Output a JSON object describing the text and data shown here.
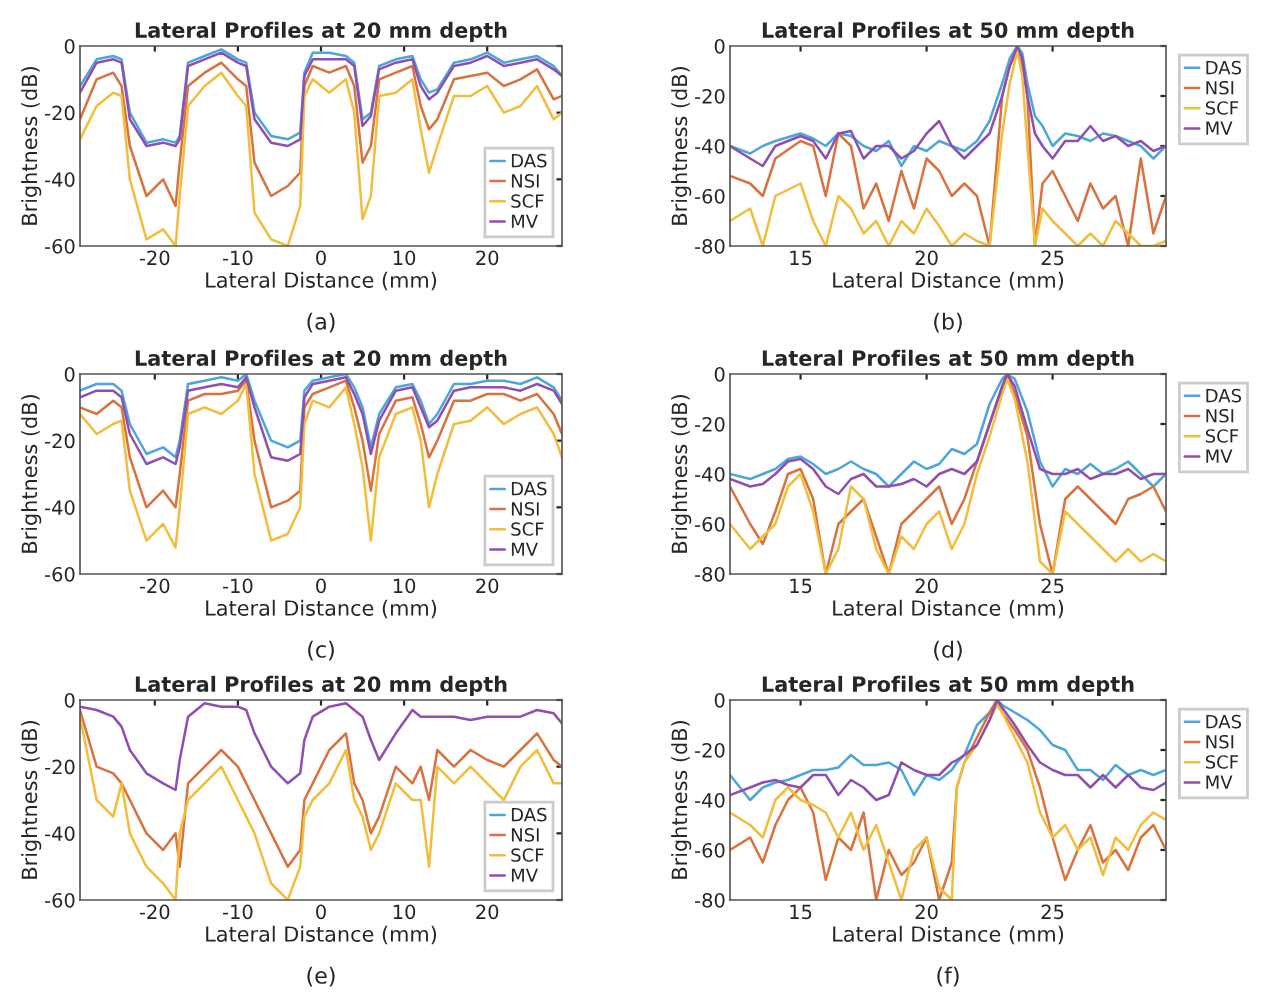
{
  "chart_data": [
    {
      "type": "line",
      "title": "Lateral Profiles at 20 mm depth",
      "xlabel": "Lateral Distance (mm)",
      "ylabel": "Brightness (dB)",
      "annotations": [
        "(a)"
      ],
      "xlim": [
        -29,
        29
      ],
      "xticks": [
        -20,
        -10,
        0,
        10,
        20
      ],
      "ylim": [
        -60,
        0
      ],
      "yticks": [
        -60,
        -40,
        -20,
        0
      ],
      "legend": "bottom right",
      "grid": false,
      "x": [
        -29,
        -27,
        -25,
        -24,
        -23,
        -21,
        -19,
        -17.5,
        -17,
        -16,
        -14,
        -12,
        -10,
        -9,
        -8,
        -6,
        -4,
        -2.5,
        -2,
        -1,
        1,
        3,
        4,
        5,
        6,
        7,
        9,
        11,
        12,
        13,
        14,
        16,
        18,
        20,
        22,
        24,
        26,
        28,
        29
      ],
      "series": [
        {
          "name": "DAS",
          "color": "#4da6d9",
          "values": [
            -12,
            -4,
            -3,
            -4,
            -20,
            -29,
            -28,
            -29,
            -27,
            -5,
            -3,
            -1,
            -4,
            -5,
            -20,
            -27,
            -28,
            -26,
            -8,
            -2,
            -2,
            -3,
            -5,
            -22,
            -20,
            -6,
            -4,
            -3,
            -10,
            -14,
            -13,
            -5,
            -4,
            -2,
            -5,
            -4,
            -3,
            -6,
            -9
          ]
        },
        {
          "name": "NSI",
          "color": "#d9723f",
          "values": [
            -22,
            -10,
            -8,
            -12,
            -30,
            -45,
            -40,
            -48,
            -35,
            -12,
            -8,
            -5,
            -10,
            -12,
            -35,
            -45,
            -42,
            -38,
            -12,
            -6,
            -8,
            -6,
            -12,
            -35,
            -30,
            -10,
            -8,
            -6,
            -18,
            -25,
            -22,
            -10,
            -9,
            -8,
            -12,
            -10,
            -7,
            -16,
            -15
          ]
        },
        {
          "name": "SCF",
          "color": "#f0be3c",
          "values": [
            -28,
            -18,
            -14,
            -15,
            -40,
            -58,
            -55,
            -60,
            -45,
            -18,
            -12,
            -8,
            -15,
            -18,
            -50,
            -58,
            -60,
            -48,
            -15,
            -10,
            -14,
            -10,
            -20,
            -52,
            -45,
            -15,
            -14,
            -10,
            -25,
            -38,
            -30,
            -15,
            -15,
            -12,
            -20,
            -18,
            -12,
            -22,
            -20
          ]
        },
        {
          "name": "MV",
          "color": "#8e4fb0",
          "values": [
            -14,
            -5,
            -4,
            -5,
            -22,
            -30,
            -29,
            -30,
            -28,
            -6,
            -4,
            -2,
            -5,
            -6,
            -22,
            -29,
            -30,
            -28,
            -9,
            -4,
            -4,
            -4,
            -6,
            -24,
            -21,
            -7,
            -5,
            -4,
            -12,
            -16,
            -14,
            -6,
            -5,
            -3,
            -6,
            -5,
            -4,
            -7,
            -9
          ]
        }
      ]
    },
    {
      "type": "line",
      "title": "Lateral Profiles at 50 mm depth",
      "xlabel": "Lateral Distance (mm)",
      "ylabel": "Brightness (dB)",
      "annotations": [
        "(b)"
      ],
      "xlim": [
        12.2,
        29.5
      ],
      "xticks": [
        15,
        20,
        25
      ],
      "ylim": [
        -80,
        0
      ],
      "yticks": [
        -80,
        -60,
        -40,
        -20,
        0
      ],
      "legend": "right",
      "grid": false,
      "x": [
        12.2,
        13,
        13.5,
        14,
        15,
        15.5,
        16,
        16.5,
        17,
        17.5,
        18,
        18.5,
        19,
        19.5,
        20,
        20.5,
        21,
        21.5,
        22,
        22.5,
        23,
        23.3,
        23.6,
        23.8,
        24,
        24.3,
        24.6,
        25,
        25.5,
        26,
        26.5,
        27,
        27.5,
        28,
        28.5,
        29,
        29.5
      ],
      "series": [
        {
          "name": "DAS",
          "color": "#4da6d9",
          "values": [
            -40,
            -43,
            -40,
            -38,
            -35,
            -37,
            -40,
            -35,
            -36,
            -40,
            -42,
            -38,
            -48,
            -40,
            -42,
            -38,
            -40,
            -42,
            -38,
            -30,
            -15,
            -5,
            0,
            -3,
            -15,
            -28,
            -32,
            -40,
            -35,
            -36,
            -38,
            -35,
            -36,
            -38,
            -40,
            -45,
            -40
          ]
        },
        {
          "name": "NSI",
          "color": "#d9723f",
          "values": [
            -52,
            -55,
            -60,
            -45,
            -38,
            -40,
            -60,
            -35,
            -40,
            -65,
            -55,
            -70,
            -50,
            -65,
            -45,
            -50,
            -60,
            -55,
            -60,
            -80,
            -20,
            -8,
            -2,
            -8,
            -20,
            -80,
            -55,
            -50,
            -60,
            -70,
            -55,
            -65,
            -60,
            -80,
            -45,
            -75,
            -60
          ]
        },
        {
          "name": "SCF",
          "color": "#f0be3c",
          "values": [
            -70,
            -65,
            -80,
            -60,
            -55,
            -70,
            -80,
            -60,
            -65,
            -75,
            -70,
            -80,
            -70,
            -75,
            -65,
            -72,
            -80,
            -75,
            -78,
            -80,
            -35,
            -15,
            -2,
            -12,
            -40,
            -80,
            -65,
            -70,
            -75,
            -80,
            -75,
            -80,
            -70,
            -75,
            -80,
            -80,
            -78
          ]
        },
        {
          "name": "MV",
          "color": "#8e4fb0",
          "values": [
            -40,
            -45,
            -48,
            -40,
            -36,
            -38,
            -45,
            -35,
            -34,
            -45,
            -40,
            -40,
            -45,
            -42,
            -35,
            -30,
            -40,
            -45,
            -40,
            -35,
            -20,
            -8,
            0,
            -5,
            -20,
            -35,
            -40,
            -45,
            -38,
            -38,
            -32,
            -38,
            -36,
            -40,
            -38,
            -42,
            -40
          ]
        }
      ]
    },
    {
      "type": "line",
      "title": "Lateral Profiles at 20 mm depth",
      "xlabel": "Lateral Distance (mm)",
      "ylabel": "Brightness (dB)",
      "annotations": [
        "(c)"
      ],
      "xlim": [
        -29,
        29
      ],
      "xticks": [
        -20,
        -10,
        0,
        10,
        20
      ],
      "ylim": [
        -60,
        0
      ],
      "yticks": [
        -60,
        -40,
        -20,
        0
      ],
      "legend": "bottom right",
      "grid": false,
      "x": [
        -29,
        -27,
        -25,
        -24,
        -23,
        -21,
        -19,
        -17.5,
        -17,
        -16,
        -14,
        -12,
        -10,
        -9,
        -8,
        -6,
        -4,
        -2.5,
        -2,
        -1,
        1,
        3,
        4,
        5,
        6,
        7,
        9,
        11,
        12,
        13,
        14,
        16,
        18,
        20,
        22,
        24,
        26,
        28,
        29
      ],
      "series": [
        {
          "name": "DAS",
          "color": "#4da6d9",
          "values": [
            -5,
            -3,
            -3,
            -5,
            -15,
            -24,
            -22,
            -25,
            -20,
            -3,
            -2,
            -1,
            -2,
            0,
            -8,
            -20,
            -22,
            -20,
            -5,
            -2,
            -1,
            0,
            -4,
            -10,
            -22,
            -12,
            -4,
            -3,
            -8,
            -15,
            -12,
            -3,
            -3,
            -2,
            -2,
            -3,
            -1,
            -4,
            -8
          ]
        },
        {
          "name": "NSI",
          "color": "#d9723f",
          "values": [
            -10,
            -12,
            -8,
            -10,
            -25,
            -40,
            -35,
            -40,
            -30,
            -8,
            -6,
            -6,
            -5,
            -2,
            -20,
            -40,
            -38,
            -35,
            -10,
            -6,
            -4,
            -2,
            -10,
            -20,
            -35,
            -18,
            -8,
            -7,
            -15,
            -25,
            -20,
            -8,
            -8,
            -6,
            -6,
            -8,
            -6,
            -12,
            -18
          ]
        },
        {
          "name": "SCF",
          "color": "#f0be3c",
          "values": [
            -12,
            -18,
            -15,
            -14,
            -35,
            -50,
            -45,
            -52,
            -40,
            -12,
            -10,
            -12,
            -8,
            -3,
            -30,
            -50,
            -48,
            -40,
            -15,
            -8,
            -10,
            -4,
            -15,
            -28,
            -50,
            -25,
            -12,
            -10,
            -20,
            -40,
            -30,
            -15,
            -14,
            -10,
            -15,
            -12,
            -10,
            -18,
            -25
          ]
        },
        {
          "name": "MV",
          "color": "#8e4fb0",
          "values": [
            -7,
            -5,
            -5,
            -7,
            -18,
            -27,
            -25,
            -27,
            -22,
            -5,
            -4,
            -3,
            -4,
            -1,
            -10,
            -25,
            -26,
            -24,
            -7,
            -3,
            -2,
            -1,
            -6,
            -12,
            -24,
            -14,
            -5,
            -4,
            -10,
            -16,
            -14,
            -5,
            -4,
            -4,
            -4,
            -5,
            -3,
            -5,
            -9
          ]
        }
      ]
    },
    {
      "type": "line",
      "title": "Lateral Profiles at 50 mm depth",
      "xlabel": "Lateral Distance (mm)",
      "ylabel": "Brightness (dB)",
      "annotations": [
        "(d)"
      ],
      "xlim": [
        12.2,
        29.5
      ],
      "xticks": [
        15,
        20,
        25
      ],
      "ylim": [
        -80,
        0
      ],
      "yticks": [
        -80,
        -60,
        -40,
        -20,
        0
      ],
      "legend": "right",
      "grid": false,
      "x": [
        12.2,
        13,
        13.5,
        14,
        14.5,
        15,
        15.5,
        16,
        16.5,
        17,
        17.5,
        18,
        18.5,
        19,
        19.5,
        20,
        20.5,
        21,
        21.5,
        22,
        22.5,
        23,
        23.2,
        23.5,
        24,
        24.5,
        25,
        25.5,
        26,
        26.5,
        27,
        27.5,
        28,
        28.5,
        29,
        29.5
      ],
      "series": [
        {
          "name": "DAS",
          "color": "#4da6d9",
          "values": [
            -40,
            -42,
            -40,
            -38,
            -34,
            -33,
            -36,
            -40,
            -38,
            -35,
            -38,
            -40,
            -45,
            -40,
            -35,
            -38,
            -36,
            -30,
            -32,
            -28,
            -12,
            -2,
            0,
            -2,
            -15,
            -35,
            -45,
            -38,
            -40,
            -36,
            -40,
            -38,
            -35,
            -40,
            -45,
            -40
          ]
        },
        {
          "name": "NSI",
          "color": "#d9723f",
          "values": [
            -45,
            -60,
            -68,
            -55,
            -40,
            -38,
            -50,
            -80,
            -60,
            -55,
            -50,
            -65,
            -80,
            -60,
            -55,
            -50,
            -45,
            -60,
            -50,
            -35,
            -20,
            -5,
            0,
            -8,
            -25,
            -60,
            -80,
            -50,
            -45,
            -50,
            -55,
            -60,
            -50,
            -48,
            -45,
            -55
          ]
        },
        {
          "name": "SCF",
          "color": "#f0be3c",
          "values": [
            -60,
            -70,
            -65,
            -60,
            -45,
            -40,
            -55,
            -80,
            -70,
            -45,
            -50,
            -70,
            -80,
            -65,
            -70,
            -60,
            -55,
            -70,
            -60,
            -40,
            -25,
            -8,
            -2,
            -10,
            -35,
            -75,
            -80,
            -55,
            -60,
            -65,
            -70,
            -75,
            -70,
            -75,
            -72,
            -75
          ]
        },
        {
          "name": "MV",
          "color": "#8e4fb0",
          "values": [
            -42,
            -45,
            -44,
            -40,
            -35,
            -34,
            -38,
            -45,
            -48,
            -42,
            -40,
            -45,
            -45,
            -44,
            -42,
            -45,
            -40,
            -38,
            -40,
            -35,
            -20,
            -5,
            0,
            -5,
            -22,
            -38,
            -40,
            -40,
            -38,
            -42,
            -40,
            -40,
            -38,
            -42,
            -40,
            -40
          ]
        }
      ]
    },
    {
      "type": "line",
      "title": "Lateral Profiles at 20 mm depth",
      "xlabel": "Lateral Distance (mm)",
      "ylabel": "Brightness (dB)",
      "annotations": [
        "(e)"
      ],
      "xlim": [
        -29,
        29
      ],
      "xticks": [
        -20,
        -10,
        0,
        10,
        20
      ],
      "ylim": [
        -60,
        0
      ],
      "yticks": [
        -60,
        -40,
        -20,
        0
      ],
      "legend": "bottom right",
      "grid": false,
      "x": [
        -29,
        -27,
        -25,
        -24,
        -23,
        -21,
        -19,
        -17.5,
        -17,
        -16,
        -14,
        -12,
        -10,
        -9,
        -8,
        -6,
        -4,
        -2.5,
        -2,
        -1,
        1,
        3,
        4,
        5,
        6,
        7,
        9,
        11,
        12,
        13,
        14,
        16,
        18,
        20,
        22,
        24,
        26,
        28,
        29
      ],
      "series": [
        {
          "name": "DAS",
          "color": "#4da6d9",
          "values": [
            null,
            null,
            null,
            null,
            null,
            null,
            null,
            null,
            null,
            null,
            null,
            null,
            null,
            null,
            null,
            null,
            null,
            null,
            null,
            null,
            null,
            null,
            null,
            null,
            null,
            null,
            null,
            null,
            null,
            null,
            null,
            null,
            null,
            null,
            null,
            null,
            null,
            null,
            null
          ]
        },
        {
          "name": "NSI",
          "color": "#d9723f",
          "values": [
            -3,
            -20,
            -22,
            -25,
            -30,
            -40,
            -45,
            -40,
            -50,
            -25,
            -20,
            -15,
            -20,
            -25,
            -30,
            -40,
            -50,
            -45,
            -30,
            -25,
            -15,
            -10,
            -25,
            -30,
            -40,
            -35,
            -20,
            -25,
            -20,
            -30,
            -15,
            -20,
            -15,
            -18,
            -20,
            -15,
            -10,
            -18,
            -20
          ]
        },
        {
          "name": "SCF",
          "color": "#f0be3c",
          "values": [
            -5,
            -30,
            -35,
            -25,
            -40,
            -50,
            -55,
            -60,
            -40,
            -30,
            -25,
            -20,
            -30,
            -35,
            -40,
            -55,
            -60,
            -50,
            -35,
            -30,
            -25,
            -15,
            -30,
            -35,
            -45,
            -40,
            -25,
            -30,
            -30,
            -50,
            -20,
            -25,
            -20,
            -25,
            -30,
            -20,
            -15,
            -25,
            -25
          ]
        },
        {
          "name": "MV",
          "color": "#8e4fb0",
          "values": [
            -2,
            -3,
            -5,
            -8,
            -15,
            -22,
            -25,
            -27,
            -18,
            -5,
            -1,
            -2,
            -2,
            -3,
            -10,
            -20,
            -25,
            -22,
            -12,
            -5,
            -2,
            -1,
            -3,
            -5,
            -12,
            -18,
            -10,
            -3,
            -5,
            -5,
            -5,
            -5,
            -6,
            -5,
            -5,
            -5,
            -3,
            -4,
            -7
          ]
        }
      ]
    },
    {
      "type": "line",
      "title": "Lateral Profiles at 50 mm depth",
      "xlabel": "Lateral Distance (mm)",
      "ylabel": "Brightness (dB)",
      "annotations": [
        "(f)"
      ],
      "xlim": [
        12.2,
        29.5
      ],
      "xticks": [
        15,
        20,
        25
      ],
      "ylim": [
        -80,
        0
      ],
      "yticks": [
        -80,
        -60,
        -40,
        -20,
        0
      ],
      "legend": "right",
      "grid": false,
      "x": [
        12.2,
        13,
        13.5,
        14,
        14.5,
        15,
        15.5,
        16,
        16.5,
        17,
        17.5,
        18,
        18.5,
        19,
        19.5,
        20,
        20.5,
        21,
        21.2,
        21.5,
        22,
        22.5,
        22.8,
        23,
        23.5,
        24,
        24.5,
        25,
        25.5,
        26,
        26.5,
        27,
        27.5,
        28,
        28.5,
        29,
        29.5
      ],
      "series": [
        {
          "name": "DAS",
          "color": "#4da6d9",
          "values": [
            -30,
            -40,
            -35,
            -33,
            -32,
            -30,
            -28,
            -28,
            -27,
            -22,
            -26,
            -26,
            -25,
            -28,
            -38,
            -30,
            -32,
            -28,
            -25,
            -22,
            -10,
            -5,
            0,
            -2,
            -5,
            -8,
            -12,
            -18,
            -20,
            -28,
            -28,
            -32,
            -26,
            -30,
            -28,
            -30,
            -28
          ]
        },
        {
          "name": "NSI",
          "color": "#d9723f",
          "values": [
            -60,
            -55,
            -65,
            -50,
            -40,
            -35,
            -45,
            -72,
            -55,
            -60,
            -45,
            -80,
            -60,
            -70,
            -65,
            -55,
            -80,
            -65,
            -35,
            -25,
            -15,
            -5,
            0,
            -5,
            -12,
            -20,
            -35,
            -55,
            -72,
            -60,
            -50,
            -65,
            -60,
            -68,
            -55,
            -50,
            -60
          ]
        },
        {
          "name": "SCF",
          "color": "#f0be3c",
          "values": [
            -45,
            -50,
            -55,
            -40,
            -35,
            -40,
            -42,
            -45,
            -55,
            -45,
            -60,
            -50,
            -65,
            -80,
            -60,
            -55,
            -75,
            -80,
            -35,
            -25,
            -18,
            -8,
            -2,
            -5,
            -15,
            -25,
            -45,
            -55,
            -50,
            -60,
            -55,
            -70,
            -55,
            -60,
            -50,
            -45,
            -48
          ]
        },
        {
          "name": "MV",
          "color": "#8e4fb0",
          "values": [
            -38,
            -35,
            -33,
            -32,
            -34,
            -35,
            -30,
            -30,
            -38,
            -32,
            -35,
            -40,
            -38,
            -25,
            -28,
            -30,
            -30,
            -25,
            -24,
            -22,
            -18,
            -8,
            0,
            -3,
            -10,
            -18,
            -25,
            -28,
            -30,
            -30,
            -35,
            -30,
            -35,
            -30,
            -35,
            -36,
            -33
          ]
        }
      ]
    }
  ]
}
